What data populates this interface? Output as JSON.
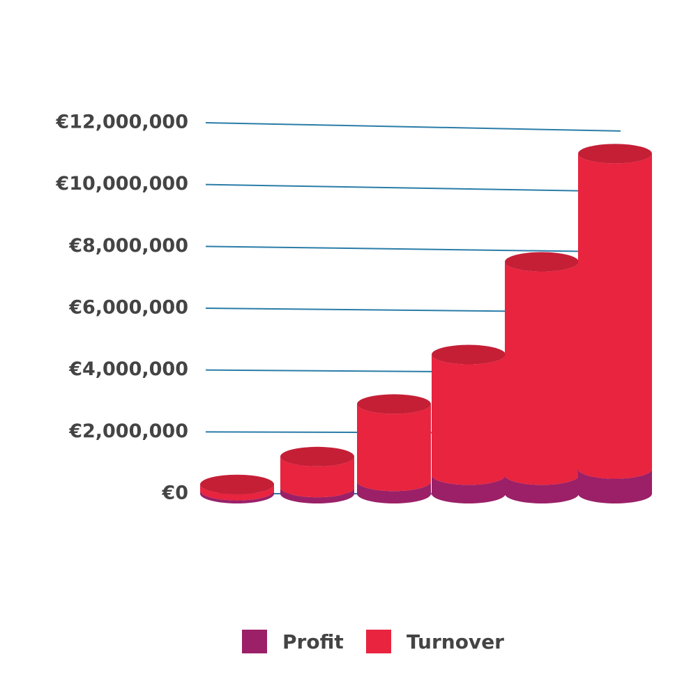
{
  "chart_data": {
    "type": "bar3d",
    "categories": [
      null,
      null,
      null,
      null,
      null,
      null
    ],
    "series": [
      {
        "name": "Profit",
        "color": "#9b2067",
        "values": [
          100000,
          200000,
          400000,
          600000,
          600000,
          800000
        ]
      },
      {
        "name": "Turnover",
        "color": "#e8243f",
        "values": [
          200000,
          1000000,
          2500000,
          3900000,
          6900000,
          10200000
        ]
      }
    ],
    "stacked": true,
    "ylim": [
      0,
      12000000
    ],
    "yticks": [
      {
        "value": 0,
        "label": "€0"
      },
      {
        "value": 2000000,
        "label": "€2,000,000"
      },
      {
        "value": 4000000,
        "label": "€4,000,000"
      },
      {
        "value": 6000000,
        "label": "€6,000,000"
      },
      {
        "value": 8000000,
        "label": "€8,000,000"
      },
      {
        "value": 10000000,
        "label": "€10,000,000"
      },
      {
        "value": 12000000,
        "label": "€12,000,000"
      }
    ],
    "grid": true,
    "legend": "bottom"
  }
}
